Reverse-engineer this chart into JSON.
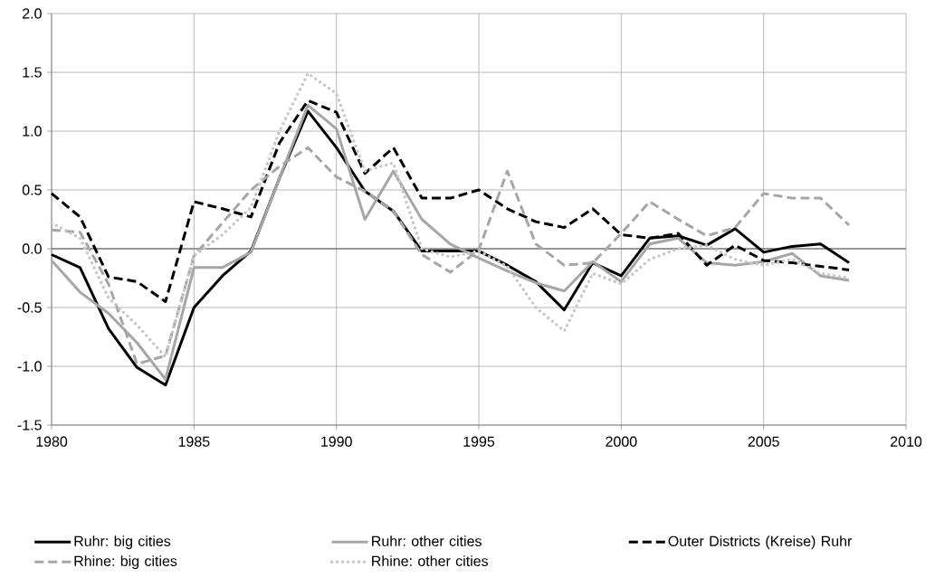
{
  "chart_data": {
    "type": "line",
    "x": [
      1980,
      1981,
      1982,
      1983,
      1984,
      1985,
      1986,
      1987,
      1988,
      1989,
      1990,
      1991,
      1992,
      1993,
      1994,
      1995,
      1996,
      1997,
      1998,
      1999,
      2000,
      2001,
      2002,
      2003,
      2004,
      2005,
      2006,
      2007,
      2008
    ],
    "series": [
      {
        "name": "Ruhr: big cities",
        "color": "#000000",
        "line_style": "solid",
        "values": [
          -0.05,
          -0.16,
          -0.68,
          -1.01,
          -1.16,
          -0.5,
          -0.23,
          -0.02,
          0.6,
          1.17,
          0.86,
          0.49,
          0.32,
          -0.02,
          -0.02,
          -0.02,
          -0.14,
          -0.28,
          -0.52,
          -0.12,
          -0.23,
          0.09,
          0.11,
          0.03,
          0.17,
          -0.03,
          0.02,
          0.04,
          -0.12
        ]
      },
      {
        "name": "Ruhr: other cities",
        "color": "#a6a6a6",
        "line_style": "solid",
        "values": [
          -0.1,
          -0.37,
          -0.55,
          -0.8,
          -1.11,
          -0.16,
          -0.16,
          -0.03,
          0.6,
          1.22,
          1.02,
          0.25,
          0.66,
          0.25,
          0.04,
          -0.08,
          -0.19,
          -0.29,
          -0.36,
          -0.11,
          -0.28,
          0.04,
          0.09,
          -0.12,
          -0.14,
          -0.11,
          -0.04,
          -0.23,
          -0.27
        ]
      },
      {
        "name": "Outer Districts (Kreise) Ruhr",
        "color": "#000000",
        "line_style": "dashed",
        "values": [
          0.47,
          0.27,
          -0.24,
          -0.28,
          -0.45,
          0.4,
          0.34,
          0.27,
          0.9,
          1.26,
          1.16,
          0.64,
          0.86,
          0.43,
          0.43,
          0.5,
          0.34,
          0.23,
          0.18,
          0.34,
          0.12,
          0.09,
          0.13,
          -0.14,
          0.03,
          -0.1,
          -0.12,
          -0.15,
          -0.18
        ]
      },
      {
        "name": "Rhine: big cities",
        "color": "#a6a6a6",
        "line_style": "dashed",
        "values": [
          0.16,
          0.14,
          -0.3,
          -0.98,
          -0.91,
          -0.06,
          0.22,
          0.5,
          0.7,
          0.86,
          0.61,
          0.49,
          0.32,
          -0.05,
          -0.2,
          -0.01,
          0.66,
          0.04,
          -0.14,
          -0.12,
          0.13,
          0.4,
          0.25,
          0.11,
          0.18,
          0.47,
          0.43,
          0.43,
          0.2
        ]
      },
      {
        "name": "Rhine: other cities",
        "color": "#c8c8c8",
        "line_style": "dotted",
        "values": [
          0.22,
          0.09,
          -0.42,
          -0.65,
          -0.92,
          -0.06,
          0.12,
          0.35,
          1.0,
          1.49,
          1.32,
          0.66,
          0.73,
          0.0,
          -0.07,
          -0.02,
          -0.15,
          -0.5,
          -0.7,
          -0.21,
          -0.3,
          -0.09,
          0.0,
          0.03,
          -0.09,
          -0.14,
          -0.09,
          -0.21,
          -0.25
        ]
      }
    ],
    "xlim": [
      1980,
      2010
    ],
    "xticks": [
      1980,
      1985,
      1990,
      1995,
      2000,
      2005,
      2010
    ],
    "ylim": [
      -1.5,
      2.0
    ],
    "yticks": [
      -1.5,
      {
        "value": -1.0,
        "label": "-1.0"
      },
      -0.5,
      {
        "value": 0.0,
        "label": "0.0"
      },
      0.5,
      {
        "value": 1.0,
        "label": "1.0"
      },
      1.5,
      {
        "value": 2.0,
        "label": "2.0"
      }
    ],
    "ref_lines": [
      {
        "axis": "y",
        "value": 0,
        "color": "#808080"
      }
    ],
    "grid": true,
    "legend": "bottom",
    "marker": "none"
  }
}
